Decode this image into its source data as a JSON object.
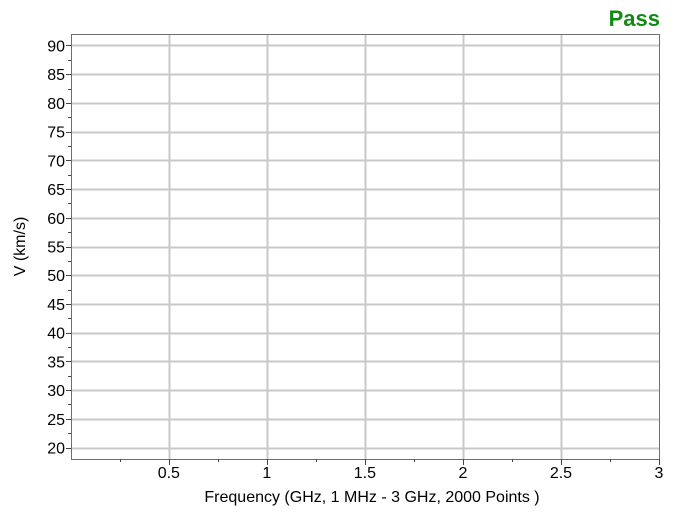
{
  "status": {
    "label": "Pass",
    "color": "#138a13"
  },
  "chart_data": {
    "type": "line",
    "title": "",
    "xlabel": "Frequency (GHz, 1 MHz - 3 GHz, 2000 Points )",
    "ylabel": "V (km/s)",
    "xlim": [
      0.001,
      3.0
    ],
    "ylim": [
      18,
      92
    ],
    "x_ticks": [
      0.5,
      1,
      1.5,
      2,
      2.5,
      3
    ],
    "x_tick_labels": [
      "0.5",
      "1",
      "1.5",
      "2",
      "2.5",
      "3"
    ],
    "x_minor_ticks": [
      0.25,
      0.75,
      1.25,
      1.75,
      2.25,
      2.75
    ],
    "y_ticks": [
      20,
      25,
      30,
      35,
      40,
      45,
      50,
      55,
      60,
      65,
      70,
      75,
      80,
      85,
      90
    ],
    "y_tick_labels": [
      "20",
      "25",
      "30",
      "35",
      "40",
      "45",
      "50",
      "55",
      "60",
      "65",
      "70",
      "75",
      "80",
      "85",
      "90"
    ],
    "grid": true,
    "grid_color": "#c8c8c8",
    "series": []
  }
}
